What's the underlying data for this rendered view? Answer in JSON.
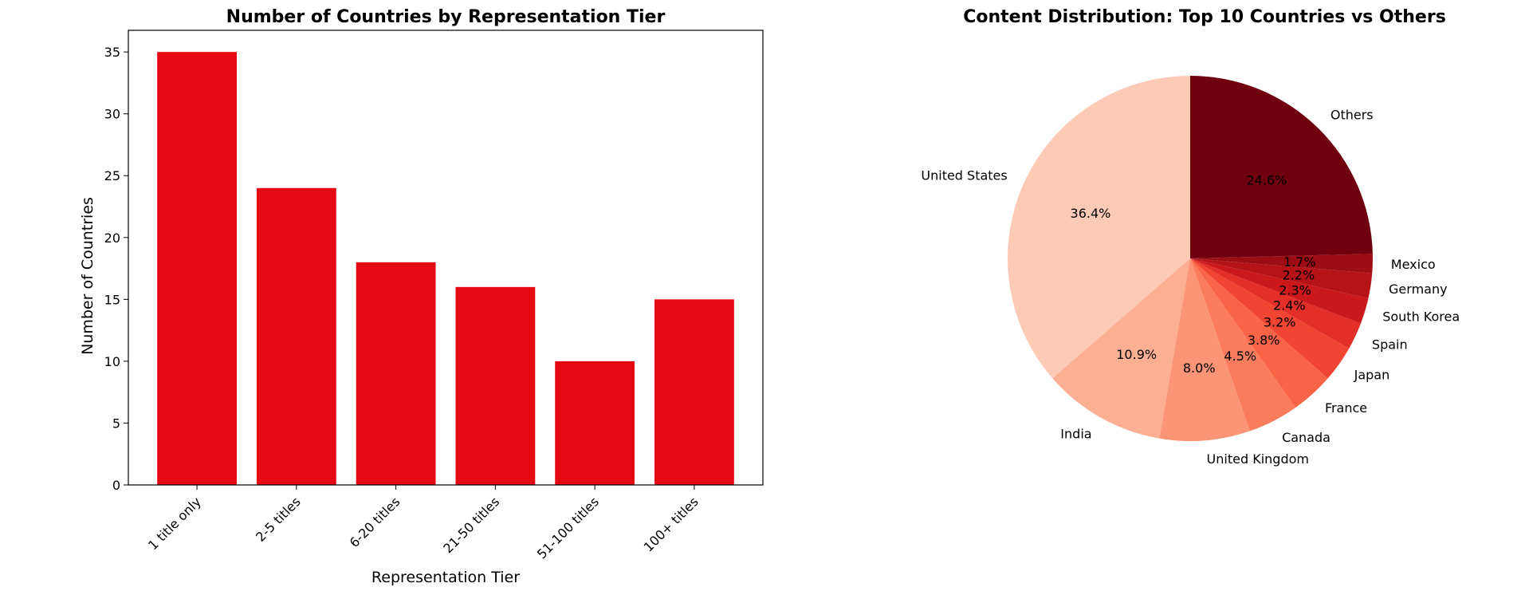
{
  "chart_data": [
    {
      "type": "bar",
      "title": "Number of Countries by Representation Tier",
      "xlabel": "Representation Tier",
      "ylabel": "Number of Countries",
      "categories": [
        "1 title only",
        "2-5 titles",
        "6-20 titles",
        "21-50 titles",
        "51-100 titles",
        "100+ titles"
      ],
      "values": [
        35,
        24,
        18,
        16,
        10,
        15
      ],
      "ylim": [
        0,
        36.75
      ],
      "yticks": [
        0,
        5,
        10,
        15,
        20,
        25,
        30,
        35
      ],
      "grid": false,
      "color": "#e50914"
    },
    {
      "type": "pie",
      "title": "Content Distribution: Top 10 Countries vs Others",
      "start_angle_deg": 90,
      "direction": "counterclockwise",
      "slices": [
        {
          "label": "United States",
          "value": 36.4,
          "pct_label": "36.4%",
          "color": "#fdcab5"
        },
        {
          "label": "India",
          "value": 10.9,
          "pct_label": "10.9%",
          "color": "#fcaf93"
        },
        {
          "label": "United Kingdom",
          "value": 8.0,
          "pct_label": "8.0%",
          "color": "#fc9576"
        },
        {
          "label": "Canada",
          "value": 4.5,
          "pct_label": "4.5%",
          "color": "#fb7c5c"
        },
        {
          "label": "France",
          "value": 3.8,
          "pct_label": "3.8%",
          "color": "#f96346"
        },
        {
          "label": "Japan",
          "value": 3.2,
          "pct_label": "3.2%",
          "color": "#f14432"
        },
        {
          "label": "Spain",
          "value": 2.4,
          "pct_label": "2.4%",
          "color": "#e32f27"
        },
        {
          "label": "South Korea",
          "value": 2.3,
          "pct_label": "2.3%",
          "color": "#ca181d"
        },
        {
          "label": "Germany",
          "value": 2.2,
          "pct_label": "2.2%",
          "color": "#b61319"
        },
        {
          "label": "Mexico",
          "value": 1.7,
          "pct_label": "1.7%",
          "color": "#9c0d14"
        },
        {
          "label": "Others",
          "value": 24.6,
          "pct_label": "24.6%",
          "color": "#71000f"
        }
      ]
    }
  ]
}
